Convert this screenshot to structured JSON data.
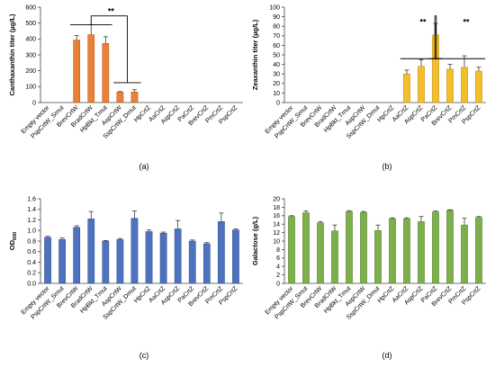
{
  "figure": {
    "colors": {
      "axis": "#444444",
      "error": "#222222",
      "bracket": "#000000"
    }
  },
  "chart_data": [
    {
      "type": "bar",
      "panel_label": "(a)",
      "ylabel": "Canthaxanthin titer (µg/L)",
      "ylim": [
        0,
        600
      ],
      "yticks": [
        0,
        100,
        200,
        300,
        400,
        500,
        600
      ],
      "tick_decimals": 0,
      "color": "#E8803A",
      "edge": "#B35A1C",
      "categories": [
        "Empty vector",
        "PspCrtW_Smut",
        "BrevCrtW",
        "BradCrtW",
        "HpBkt_Tmut",
        "AspCrtW",
        "SspCrtW_Dmut",
        "HpCrtZ",
        "AaCrtZ",
        "AspCrtZ",
        "PaCrtZ",
        "BrevCrtZ",
        "PmCrtZ",
        "PspCrtZ"
      ],
      "values": [
        0,
        0,
        393,
        427,
        372,
        65,
        67,
        0,
        0,
        0,
        0,
        0,
        0,
        0
      ],
      "errors": [
        0,
        0,
        28,
        62,
        42,
        4,
        14,
        0,
        0,
        0,
        0,
        0,
        0,
        0
      ],
      "annotations": [
        {
          "text": "**",
          "ref": [
            2,
            6
          ],
          "arm_values": [
            490,
            125
          ],
          "top_value": 545
        }
      ]
    },
    {
      "type": "bar",
      "panel_label": "(b)",
      "ylabel": "Zeaxanthin titer (µg/L)",
      "ylim": [
        0,
        100
      ],
      "yticks": [
        0,
        10,
        20,
        30,
        40,
        50,
        60,
        70,
        80,
        90,
        100
      ],
      "tick_decimals": 0,
      "color": "#F4BE2A",
      "edge": "#B98A10",
      "categories": [
        "Empty vector",
        "PspCrtW_Smut",
        "BrevCrtW",
        "BradCrtW",
        "HpBkt_Tmut",
        "AspCrtW",
        "SspCrtW_Dmut",
        "HpCrtZ",
        "AaCrtZ",
        "AspCrtZ",
        "PaCrtZ",
        "BrevCrtZ",
        "PmCrtZ",
        "PspCrtZ"
      ],
      "values": [
        0,
        0,
        0,
        0,
        0,
        0,
        0,
        0,
        30,
        38,
        71,
        35,
        37,
        33
      ],
      "errors": [
        0,
        0,
        0,
        0,
        0,
        0,
        0,
        0,
        4,
        7,
        12,
        5,
        12,
        4
      ],
      "annotations": [
        {
          "text": "**",
          "ref": [
            8,
            9,
            10
          ],
          "arm_values": [
            46,
            91
          ],
          "top_value": 91
        },
        {
          "text": "**",
          "ref": [
            10,
            11,
            12,
            13
          ],
          "arm_values": [
            91,
            46
          ],
          "top_value": 91
        }
      ]
    },
    {
      "type": "bar",
      "panel_label": "(c)",
      "ylabel": "OD600",
      "ylim": [
        0,
        1.6
      ],
      "yticks": [
        0,
        0.2,
        0.4,
        0.6,
        0.8,
        1.0,
        1.2,
        1.4,
        1.6
      ],
      "tick_decimals": 1,
      "color": "#4F72BE",
      "edge": "#2E4E8E",
      "categories": [
        "Empty vector",
        "PspCrtW_Smut",
        "BrevCrtW",
        "BradCrtW",
        "HpBkt_Tmut",
        "AspCrtW",
        "SspCrtW_Dmut",
        "HpCrtZ",
        "AaCrtZ",
        "AspCrtZ",
        "PaCrtZ",
        "BrevCrtZ",
        "PmCrtZ",
        "PspCrtZ"
      ],
      "values": [
        0.87,
        0.83,
        1.06,
        1.22,
        0.8,
        0.83,
        1.23,
        0.98,
        0.95,
        1.03,
        0.8,
        0.75,
        1.17,
        1.01
      ],
      "errors": [
        0.02,
        0.03,
        0.03,
        0.14,
        0.01,
        0.02,
        0.14,
        0.03,
        0.02,
        0.16,
        0.02,
        0.02,
        0.16,
        0.02
      ],
      "annotations": []
    },
    {
      "type": "bar",
      "panel_label": "(d)",
      "ylabel": "Galactose (g/L)",
      "ylim": [
        0,
        20
      ],
      "yticks": [
        0,
        2,
        4,
        6,
        8,
        10,
        12,
        14,
        16,
        18,
        20
      ],
      "tick_decimals": 0,
      "color": "#7DAF4C",
      "edge": "#547E2C",
      "categories": [
        "Empty vector",
        "PspCrtW_Smut",
        "BrevCrtW",
        "BradCrtW",
        "HpBkt_Tmut",
        "AspCrtW",
        "SspCrtW_Dmut",
        "HpCrtZ",
        "AaCrtZ",
        "AspCrtZ",
        "PaCrtZ",
        "BrevCrtZ",
        "PmCrtZ",
        "PspCrtZ"
      ],
      "values": [
        15.8,
        16.7,
        14.3,
        12.4,
        17.0,
        16.8,
        12.5,
        15.3,
        15.3,
        14.6,
        16.9,
        17.3,
        13.8,
        15.6
      ],
      "errors": [
        0.2,
        0.4,
        0.3,
        1.4,
        0.2,
        0.2,
        1.3,
        0.2,
        0.2,
        1.2,
        0.2,
        0.1,
        1.6,
        0.2
      ],
      "annotations": []
    }
  ]
}
